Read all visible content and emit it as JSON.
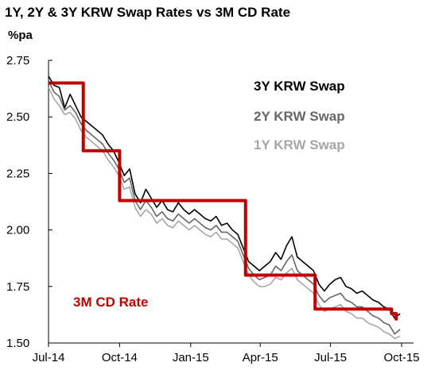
{
  "chart_data": {
    "type": "line",
    "title": "1Y, 2Y & 3Y KRW Swap Rates vs 3M CD Rate",
    "ylabel": "%pa",
    "xlabel": "",
    "ylim": [
      1.5,
      2.75
    ],
    "xlim": [
      "2014-07-01",
      "2015-10-01"
    ],
    "yticks": [
      "2.75",
      "2.50",
      "2.25",
      "2.00",
      "1.75",
      "1.50"
    ],
    "xticks": [
      {
        "label": "Jul-14",
        "date": "2014-07-01"
      },
      {
        "label": "Oct-14",
        "date": "2014-10-01"
      },
      {
        "label": "Jan-15",
        "date": "2015-01-01"
      },
      {
        "label": "Apr-15",
        "date": "2015-04-01"
      },
      {
        "label": "Jul-15",
        "date": "2015-07-01"
      },
      {
        "label": "Oct-15",
        "date": "2015-10-01"
      }
    ],
    "grid": false,
    "legend_position": "top-right",
    "series": [
      {
        "name": "3M CD Rate",
        "color": "#c00000",
        "style": "step",
        "points": [
          [
            "2014-07-01",
            2.65
          ],
          [
            "2014-08-14",
            2.65
          ],
          [
            "2014-08-15",
            2.35
          ],
          [
            "2014-09-30",
            2.35
          ],
          [
            "2014-10-01",
            2.13
          ],
          [
            "2015-03-12",
            2.13
          ],
          [
            "2015-03-13",
            1.8
          ],
          [
            "2015-06-10",
            1.8
          ],
          [
            "2015-06-11",
            1.65
          ],
          [
            "2015-09-18",
            1.63
          ],
          [
            "2015-09-24",
            1.6
          ]
        ]
      },
      {
        "name": "3Y KRW Swap",
        "color": "#000000",
        "points": [
          [
            "2014-07-01",
            2.68
          ],
          [
            "2014-07-08",
            2.64
          ],
          [
            "2014-07-15",
            2.63
          ],
          [
            "2014-07-22",
            2.54
          ],
          [
            "2014-07-29",
            2.6
          ],
          [
            "2014-08-05",
            2.55
          ],
          [
            "2014-08-12",
            2.5
          ],
          [
            "2014-08-19",
            2.48
          ],
          [
            "2014-08-26",
            2.46
          ],
          [
            "2014-09-02",
            2.44
          ],
          [
            "2014-09-09",
            2.42
          ],
          [
            "2014-09-16",
            2.38
          ],
          [
            "2014-09-23",
            2.35
          ],
          [
            "2014-09-30",
            2.3
          ],
          [
            "2014-10-07",
            2.24
          ],
          [
            "2014-10-14",
            2.27
          ],
          [
            "2014-10-21",
            2.16
          ],
          [
            "2014-10-28",
            2.12
          ],
          [
            "2014-11-04",
            2.18
          ],
          [
            "2014-11-11",
            2.14
          ],
          [
            "2014-11-18",
            2.1
          ],
          [
            "2014-11-25",
            2.13
          ],
          [
            "2014-12-02",
            2.09
          ],
          [
            "2014-12-09",
            2.08
          ],
          [
            "2014-12-16",
            2.12
          ],
          [
            "2014-12-23",
            2.09
          ],
          [
            "2014-12-30",
            2.07
          ],
          [
            "2015-01-06",
            2.09
          ],
          [
            "2015-01-13",
            2.07
          ],
          [
            "2015-01-20",
            2.05
          ],
          [
            "2015-01-27",
            2.04
          ],
          [
            "2015-02-03",
            2.06
          ],
          [
            "2015-02-10",
            2.02
          ],
          [
            "2015-02-17",
            2.03
          ],
          [
            "2015-02-24",
            2.0
          ],
          [
            "2015-03-03",
            1.98
          ],
          [
            "2015-03-10",
            1.92
          ],
          [
            "2015-03-17",
            1.86
          ],
          [
            "2015-03-24",
            1.84
          ],
          [
            "2015-03-31",
            1.82
          ],
          [
            "2015-04-07",
            1.84
          ],
          [
            "2015-04-14",
            1.86
          ],
          [
            "2015-04-21",
            1.9
          ],
          [
            "2015-04-28",
            1.87
          ],
          [
            "2015-05-05",
            1.93
          ],
          [
            "2015-05-12",
            1.97
          ],
          [
            "2015-05-19",
            1.88
          ],
          [
            "2015-05-26",
            1.86
          ],
          [
            "2015-06-02",
            1.84
          ],
          [
            "2015-06-09",
            1.82
          ],
          [
            "2015-06-16",
            1.76
          ],
          [
            "2015-06-23",
            1.73
          ],
          [
            "2015-06-30",
            1.76
          ],
          [
            "2015-07-07",
            1.78
          ],
          [
            "2015-07-14",
            1.79
          ],
          [
            "2015-07-21",
            1.75
          ],
          [
            "2015-07-28",
            1.74
          ],
          [
            "2015-08-04",
            1.72
          ],
          [
            "2015-08-11",
            1.73
          ],
          [
            "2015-08-18",
            1.71
          ],
          [
            "2015-08-25",
            1.69
          ],
          [
            "2015-09-01",
            1.68
          ],
          [
            "2015-09-08",
            1.66
          ],
          [
            "2015-09-15",
            1.65
          ],
          [
            "2015-09-22",
            1.61
          ],
          [
            "2015-09-29",
            1.63
          ]
        ]
      },
      {
        "name": "2Y KRW Swap",
        "color": "#666666",
        "points": [
          [
            "2014-07-01",
            2.66
          ],
          [
            "2014-07-08",
            2.61
          ],
          [
            "2014-07-15",
            2.59
          ],
          [
            "2014-07-22",
            2.53
          ],
          [
            "2014-07-29",
            2.55
          ],
          [
            "2014-08-05",
            2.52
          ],
          [
            "2014-08-12",
            2.47
          ],
          [
            "2014-08-19",
            2.44
          ],
          [
            "2014-08-26",
            2.42
          ],
          [
            "2014-09-02",
            2.4
          ],
          [
            "2014-09-09",
            2.38
          ],
          [
            "2014-09-16",
            2.34
          ],
          [
            "2014-09-23",
            2.31
          ],
          [
            "2014-09-30",
            2.27
          ],
          [
            "2014-10-07",
            2.21
          ],
          [
            "2014-10-14",
            2.23
          ],
          [
            "2014-10-21",
            2.13
          ],
          [
            "2014-10-28",
            2.09
          ],
          [
            "2014-11-04",
            2.13
          ],
          [
            "2014-11-11",
            2.1
          ],
          [
            "2014-11-18",
            2.06
          ],
          [
            "2014-11-25",
            2.08
          ],
          [
            "2014-12-02",
            2.05
          ],
          [
            "2014-12-09",
            2.04
          ],
          [
            "2014-12-16",
            2.07
          ],
          [
            "2014-12-23",
            2.05
          ],
          [
            "2014-12-30",
            2.03
          ],
          [
            "2015-01-06",
            2.05
          ],
          [
            "2015-01-13",
            2.03
          ],
          [
            "2015-01-20",
            2.01
          ],
          [
            "2015-01-27",
            2.0
          ],
          [
            "2015-02-03",
            2.02
          ],
          [
            "2015-02-10",
            1.99
          ],
          [
            "2015-02-17",
            1.99
          ],
          [
            "2015-02-24",
            1.97
          ],
          [
            "2015-03-03",
            1.95
          ],
          [
            "2015-03-10",
            1.89
          ],
          [
            "2015-03-17",
            1.83
          ],
          [
            "2015-03-24",
            1.8
          ],
          [
            "2015-03-31",
            1.78
          ],
          [
            "2015-04-07",
            1.79
          ],
          [
            "2015-04-14",
            1.8
          ],
          [
            "2015-04-21",
            1.84
          ],
          [
            "2015-04-28",
            1.82
          ],
          [
            "2015-05-05",
            1.86
          ],
          [
            "2015-05-12",
            1.89
          ],
          [
            "2015-05-19",
            1.82
          ],
          [
            "2015-05-26",
            1.8
          ],
          [
            "2015-06-02",
            1.78
          ],
          [
            "2015-06-09",
            1.76
          ],
          [
            "2015-06-16",
            1.71
          ],
          [
            "2015-06-23",
            1.68
          ],
          [
            "2015-06-30",
            1.7
          ],
          [
            "2015-07-07",
            1.71
          ],
          [
            "2015-07-14",
            1.72
          ],
          [
            "2015-07-21",
            1.69
          ],
          [
            "2015-07-28",
            1.68
          ],
          [
            "2015-08-04",
            1.66
          ],
          [
            "2015-08-11",
            1.66
          ],
          [
            "2015-08-18",
            1.64
          ],
          [
            "2015-08-25",
            1.62
          ],
          [
            "2015-09-01",
            1.61
          ],
          [
            "2015-09-08",
            1.59
          ],
          [
            "2015-09-15",
            1.58
          ],
          [
            "2015-09-22",
            1.54
          ],
          [
            "2015-09-29",
            1.56
          ]
        ]
      },
      {
        "name": "1Y KRW Swap",
        "color": "#a6a6a6",
        "points": [
          [
            "2014-07-01",
            2.63
          ],
          [
            "2014-07-08",
            2.58
          ],
          [
            "2014-07-15",
            2.55
          ],
          [
            "2014-07-22",
            2.51
          ],
          [
            "2014-07-29",
            2.52
          ],
          [
            "2014-08-05",
            2.49
          ],
          [
            "2014-08-12",
            2.44
          ],
          [
            "2014-08-19",
            2.41
          ],
          [
            "2014-08-26",
            2.39
          ],
          [
            "2014-09-02",
            2.37
          ],
          [
            "2014-09-09",
            2.35
          ],
          [
            "2014-09-16",
            2.31
          ],
          [
            "2014-09-23",
            2.28
          ],
          [
            "2014-09-30",
            2.24
          ],
          [
            "2014-10-07",
            2.18
          ],
          [
            "2014-10-14",
            2.19
          ],
          [
            "2014-10-21",
            2.1
          ],
          [
            "2014-10-28",
            2.06
          ],
          [
            "2014-11-04",
            2.09
          ],
          [
            "2014-11-11",
            2.07
          ],
          [
            "2014-11-18",
            2.03
          ],
          [
            "2014-11-25",
            2.05
          ],
          [
            "2014-12-02",
            2.02
          ],
          [
            "2014-12-09",
            2.01
          ],
          [
            "2014-12-16",
            2.04
          ],
          [
            "2014-12-23",
            2.02
          ],
          [
            "2014-12-30",
            2.0
          ],
          [
            "2015-01-06",
            2.02
          ],
          [
            "2015-01-13",
            2.0
          ],
          [
            "2015-01-20",
            1.98
          ],
          [
            "2015-01-27",
            1.97
          ],
          [
            "2015-02-03",
            1.99
          ],
          [
            "2015-02-10",
            1.96
          ],
          [
            "2015-02-17",
            1.96
          ],
          [
            "2015-02-24",
            1.94
          ],
          [
            "2015-03-03",
            1.92
          ],
          [
            "2015-03-10",
            1.86
          ],
          [
            "2015-03-17",
            1.8
          ],
          [
            "2015-03-24",
            1.77
          ],
          [
            "2015-03-31",
            1.75
          ],
          [
            "2015-04-07",
            1.75
          ],
          [
            "2015-04-14",
            1.76
          ],
          [
            "2015-04-21",
            1.79
          ],
          [
            "2015-04-28",
            1.78
          ],
          [
            "2015-05-05",
            1.81
          ],
          [
            "2015-05-12",
            1.83
          ],
          [
            "2015-05-19",
            1.78
          ],
          [
            "2015-05-26",
            1.76
          ],
          [
            "2015-06-02",
            1.74
          ],
          [
            "2015-06-09",
            1.72
          ],
          [
            "2015-06-16",
            1.67
          ],
          [
            "2015-06-23",
            1.64
          ],
          [
            "2015-06-30",
            1.65
          ],
          [
            "2015-07-07",
            1.66
          ],
          [
            "2015-07-14",
            1.67
          ],
          [
            "2015-07-21",
            1.64
          ],
          [
            "2015-07-28",
            1.63
          ],
          [
            "2015-08-04",
            1.61
          ],
          [
            "2015-08-11",
            1.61
          ],
          [
            "2015-08-18",
            1.59
          ],
          [
            "2015-08-25",
            1.58
          ],
          [
            "2015-09-01",
            1.57
          ],
          [
            "2015-09-08",
            1.55
          ],
          [
            "2015-09-15",
            1.54
          ],
          [
            "2015-09-22",
            1.52
          ],
          [
            "2015-09-29",
            1.53
          ]
        ]
      }
    ],
    "annotations": [
      {
        "text": "3M CD Rate",
        "color": "#c00000"
      }
    ]
  }
}
